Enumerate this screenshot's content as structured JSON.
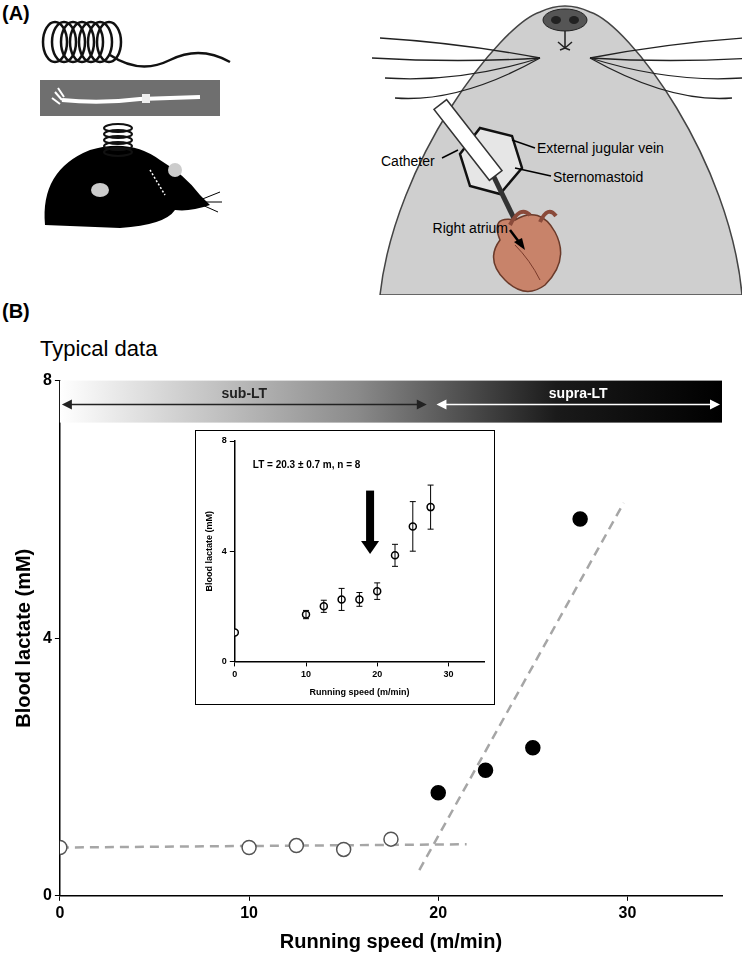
{
  "figure": {
    "panel_labels": [
      "(A)",
      "(B)"
    ]
  },
  "diagram": {
    "labels": [
      "Catheter",
      "External jugular vein",
      "Sternomastoid",
      "Right atrium"
    ]
  },
  "chart_data": [
    {
      "type": "scatter",
      "title": "Typical data",
      "x_label": "Running speed (m/min)",
      "y_label": "Blood lactate (mM)",
      "xlim": [
        0,
        35
      ],
      "xticks": [
        0,
        10,
        20,
        30
      ],
      "ylim": [
        0,
        8
      ],
      "yticks": [
        0,
        4,
        8
      ],
      "grid": false,
      "annotations": [
        {
          "text": "sub-LT",
          "x_range": [
            0,
            19.5
          ]
        },
        {
          "text": "supra-LT",
          "x_range": [
            19.8,
            35
          ]
        }
      ],
      "series": [
        {
          "type": "scatter",
          "marker": "circle_open",
          "color": "#555555",
          "x": [
            0,
            10,
            12.5,
            15,
            17.5
          ],
          "values": [
            0.75,
            0.75,
            0.78,
            0.72,
            0.88
          ]
        },
        {
          "type": "scatter",
          "marker": "circle",
          "color": "#000000",
          "x": [
            20,
            22.5,
            25,
            27.5
          ],
          "values": [
            1.6,
            1.95,
            2.3,
            5.85
          ]
        },
        {
          "type": "line",
          "line_style": "dashed",
          "color": "#a6a6a6",
          "x": [
            0,
            21.5
          ],
          "values": [
            0.75,
            0.8
          ]
        },
        {
          "type": "line",
          "line_style": "dashed",
          "color": "#a6a6a6",
          "x": [
            19,
            29.8
          ],
          "values": [
            0.4,
            6.1
          ]
        }
      ]
    },
    {
      "type": "scatter",
      "title": "LT = 20.3 ± 0.7 m, n = 8",
      "x_label": "Running speed (m/min)",
      "y_label": "Blood lactate (mM)",
      "xlim": [
        0,
        35
      ],
      "xticks": [
        0,
        10,
        20,
        30
      ],
      "ylim": [
        0,
        8
      ],
      "yticks": [
        0,
        4,
        8
      ],
      "grid": false,
      "annotations": [
        {
          "type": "arrow",
          "x": 19,
          "y_from": 6.2,
          "y_to": 3.9
        }
      ],
      "series": [
        {
          "type": "scatter",
          "marker": "circle_open",
          "color": "#000000",
          "x": [
            0,
            10,
            12.5,
            15,
            17.5,
            20,
            22.5,
            25,
            27.5
          ],
          "values": [
            1.05,
            1.7,
            2.0,
            2.25,
            2.25,
            2.55,
            3.85,
            4.9,
            5.6
          ],
          "errors": [
            0,
            0.15,
            0.22,
            0.4,
            0.25,
            0.3,
            0.4,
            0.9,
            0.8
          ]
        }
      ]
    }
  ]
}
